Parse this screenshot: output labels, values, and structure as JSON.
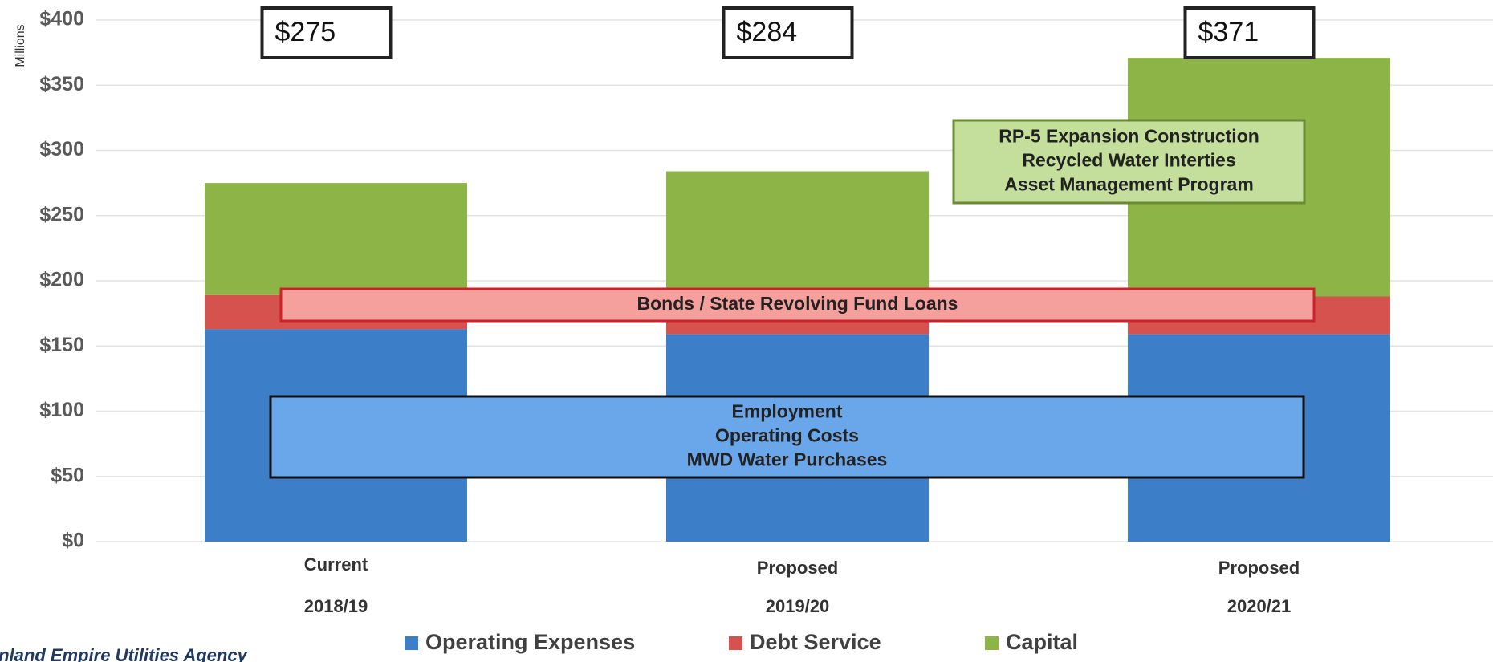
{
  "chart_data": {
    "type": "stacked-bar",
    "y_axis_label": "Millions",
    "categories": [
      "2018/19",
      "2019/20",
      "2020/21"
    ],
    "category_notes": [
      "Current",
      "Proposed",
      "Proposed"
    ],
    "series": [
      {
        "name": "Operating Expenses",
        "color": "#3d7ec8",
        "values": [
          163,
          159,
          159
        ]
      },
      {
        "name": "Debt Service",
        "color": "#d5524f",
        "values": [
          26,
          25,
          29
        ]
      },
      {
        "name": "Capital",
        "color": "#8db446",
        "values": [
          86,
          100,
          183
        ]
      }
    ],
    "totals": [
      275,
      284,
      371
    ],
    "total_labels": [
      "$275",
      "$284",
      "$371"
    ],
    "ylim": [
      0,
      400
    ],
    "yticks": [
      {
        "value": 0,
        "label": "$0"
      },
      {
        "value": 50,
        "label": "$50"
      },
      {
        "value": 100,
        "label": "$100"
      },
      {
        "value": 150,
        "label": "$150"
      },
      {
        "value": 200,
        "label": "$200"
      },
      {
        "value": 250,
        "label": "$250"
      },
      {
        "value": 300,
        "label": "$300"
      },
      {
        "value": 350,
        "label": "$350"
      },
      {
        "value": 400,
        "label": "$400"
      }
    ],
    "grid": true,
    "annotations": {
      "capital": [
        "RP-5 Expansion Construction",
        "Recycled Water Interties",
        "Asset Management Program"
      ],
      "debt": [
        "Bonds / State Revolving Fund Loans"
      ],
      "operating": [
        "Employment",
        "Operating Costs",
        "MWD Water Purchases"
      ]
    },
    "footer": "Inland Empire Utilities Agency"
  }
}
